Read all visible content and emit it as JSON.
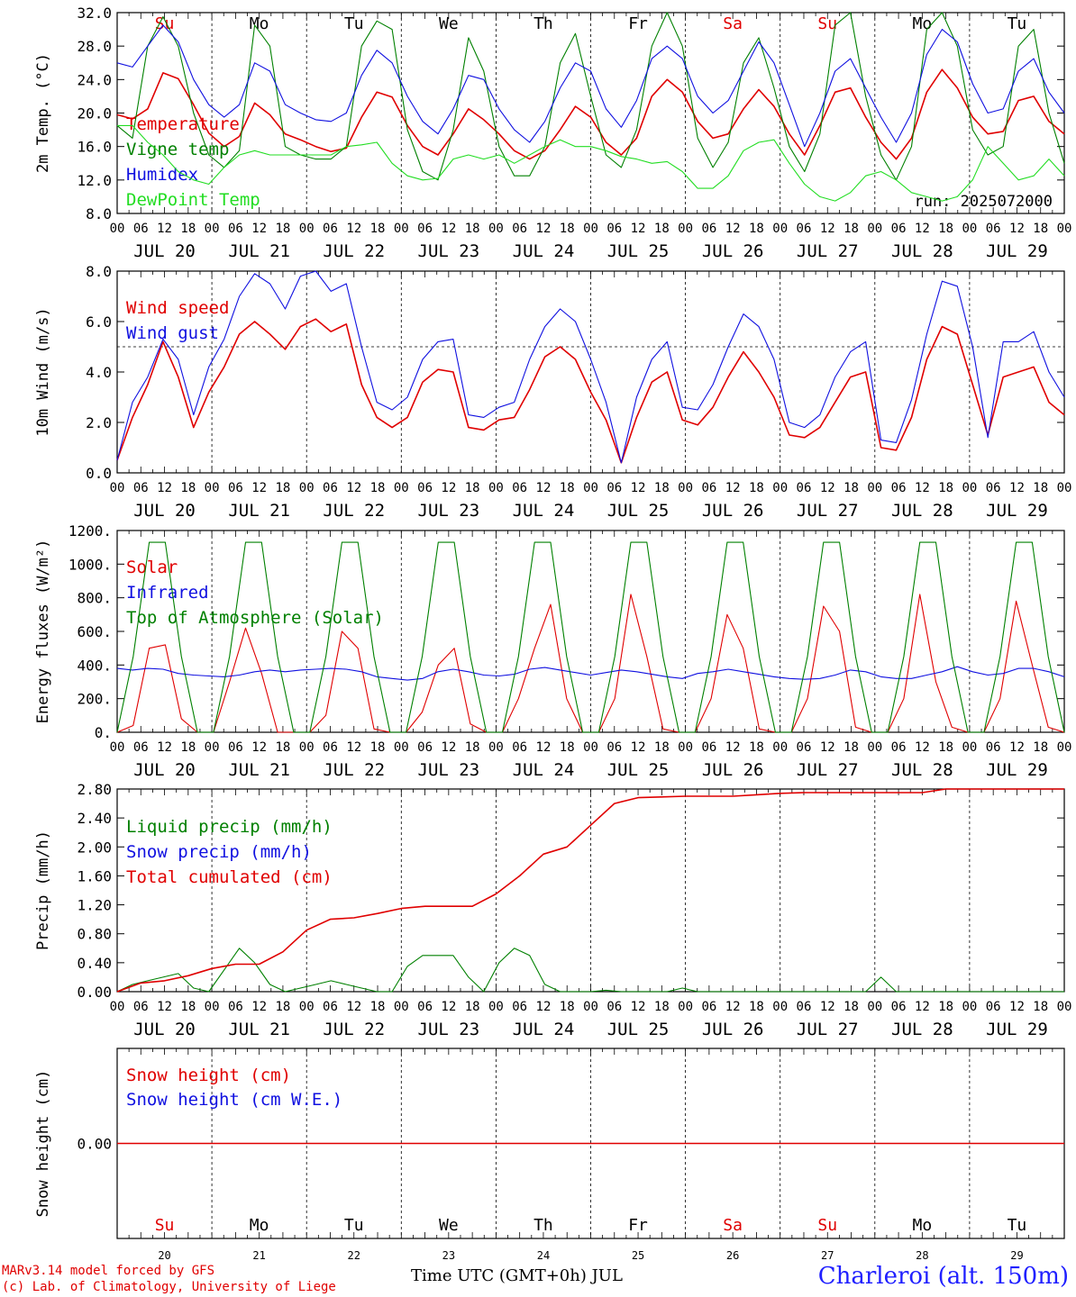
{
  "footer": {
    "credit_line1": "MARv3.14 model forced by GFS",
    "credit_line2": "(c) Lab. of Climatology, University of Liege",
    "station": "Charleroi (alt. 150m)",
    "x_title": "Time UTC (GMT+0h) JUL"
  },
  "colors": {
    "red": "#e00000",
    "green": "#008000",
    "blue": "#1010e0",
    "lightgreen": "#22dd22"
  },
  "chart_data": [
    {
      "id": "temperature",
      "type": "line",
      "ylabel": "2m Temp. (°C)",
      "ylim": [
        8,
        32
      ],
      "yticks": [
        "8.0",
        "12.0",
        "16.0",
        "20.0",
        "24.0",
        "28.0",
        "32.0"
      ],
      "run_label": "run: 2025072000",
      "xlabel_days": [
        "JUL 20",
        "JUL 21",
        "JUL 22",
        "JUL 23",
        "JUL 24",
        "JUL 25",
        "JUL 26",
        "JUL 27",
        "JUL 28",
        "JUL 29"
      ],
      "weekday_labels": [
        "Su",
        "Mo",
        "Tu",
        "We",
        "Th",
        "Fr",
        "Sa",
        "Su",
        "Mo",
        "Tu"
      ],
      "hour_ticks": [
        "00",
        "06",
        "12",
        "18"
      ],
      "x_hours_step": 6,
      "series": [
        {
          "name": "Temperature",
          "color": "red",
          "values": [
            19.8,
            19.3,
            20.5,
            24.8,
            24.1,
            21.0,
            17.6,
            16.0,
            17.2,
            21.2,
            19.8,
            17.5,
            16.8,
            16.0,
            15.4,
            15.8,
            19.5,
            22.5,
            21.9,
            18.5,
            16.0,
            15.0,
            17.5,
            20.5,
            19.2,
            17.5,
            15.5,
            14.5,
            15.5,
            18.0,
            20.8,
            19.5,
            16.5,
            15.0,
            17.0,
            22.0,
            24.0,
            22.5,
            19.0,
            17.0,
            17.5,
            20.5,
            22.8,
            20.8,
            17.5,
            15.0,
            18.5,
            22.5,
            23.0,
            19.5,
            16.5,
            14.5,
            17.0,
            22.5,
            25.2,
            23.0,
            19.5,
            17.5,
            17.8,
            21.5,
            22.0,
            19.0,
            17.5
          ]
        },
        {
          "name": "Vigne temp",
          "color": "green",
          "values": [
            18.5,
            17.0,
            28.0,
            31.5,
            28.0,
            20.0,
            15.0,
            13.5,
            15.5,
            30.5,
            28.0,
            16.0,
            15.0,
            14.5,
            14.5,
            16.0,
            28.0,
            31.0,
            30.0,
            18.0,
            13.0,
            12.0,
            18.0,
            29.0,
            25.0,
            16.0,
            12.5,
            12.5,
            16.0,
            26.0,
            29.5,
            22.0,
            15.0,
            13.5,
            18.0,
            28.0,
            32.0,
            28.0,
            17.0,
            13.5,
            16.5,
            26.0,
            29.0,
            23.0,
            16.0,
            13.0,
            17.5,
            30.5,
            32.0,
            22.0,
            15.0,
            12.0,
            16.0,
            30.0,
            32.0,
            28.0,
            18.0,
            15.0,
            16.0,
            28.0,
            30.0,
            20.0,
            14.0
          ]
        },
        {
          "name": "Humidex",
          "color": "blue",
          "values": [
            26.0,
            25.5,
            28.0,
            30.5,
            28.5,
            24.0,
            21.0,
            19.5,
            21.0,
            26.0,
            25.0,
            21.0,
            20.0,
            19.2,
            19.0,
            20.0,
            24.5,
            27.5,
            26.0,
            22.0,
            19.0,
            17.5,
            20.5,
            24.5,
            24.0,
            20.5,
            18.0,
            16.5,
            19.0,
            23.0,
            26.0,
            25.0,
            20.5,
            18.3,
            21.5,
            26.5,
            28.0,
            26.5,
            22.0,
            20.0,
            21.5,
            25.0,
            28.5,
            26.0,
            21.0,
            16.0,
            20.0,
            25.0,
            26.5,
            23.0,
            19.5,
            16.5,
            20.0,
            27.0,
            30.0,
            28.5,
            23.5,
            20.0,
            20.5,
            25.0,
            26.5,
            22.5,
            20.0
          ]
        },
        {
          "name": "DewPoint Temp",
          "color": "lightgreen",
          "values": [
            18.5,
            18.5,
            16.5,
            15.0,
            13.0,
            12.0,
            11.5,
            13.5,
            15.0,
            15.5,
            15.0,
            15.0,
            15.0,
            15.0,
            15.0,
            16.0,
            16.2,
            16.5,
            14.0,
            12.5,
            12.0,
            12.2,
            14.5,
            15.0,
            14.5,
            15.0,
            14.0,
            15.0,
            16.0,
            16.8,
            16.0,
            16.0,
            15.5,
            14.8,
            14.5,
            14.0,
            14.2,
            13.0,
            11.0,
            11.0,
            12.5,
            15.5,
            16.5,
            16.8,
            14.0,
            11.5,
            10.0,
            9.5,
            10.5,
            12.5,
            13.0,
            12.0,
            10.5,
            10.0,
            9.5,
            10.0,
            12.0,
            16.0,
            14.0,
            12.0,
            12.5,
            14.5,
            12.5
          ]
        }
      ]
    },
    {
      "id": "wind",
      "type": "line",
      "ylabel": "10m Wind (m/s)",
      "ylim": [
        0,
        8
      ],
      "yticks": [
        "0.0",
        "2.0",
        "4.0",
        "6.0",
        "8.0"
      ],
      "reference_line": 5.0,
      "xlabel_days": [
        "JUL 20",
        "JUL 21",
        "JUL 22",
        "JUL 23",
        "JUL 24",
        "JUL 25",
        "JUL 26",
        "JUL 27",
        "JUL 28",
        "JUL 29"
      ],
      "hour_ticks": [
        "00",
        "06",
        "12",
        "18"
      ],
      "x_hours_step": 6,
      "series": [
        {
          "name": "Wind speed",
          "color": "red",
          "values": [
            0.5,
            2.2,
            3.5,
            5.2,
            3.8,
            1.8,
            3.2,
            4.2,
            5.5,
            6.0,
            5.5,
            4.9,
            5.8,
            6.1,
            5.6,
            5.9,
            3.5,
            2.2,
            1.8,
            2.2,
            3.6,
            4.1,
            4.0,
            1.8,
            1.7,
            2.1,
            2.2,
            3.3,
            4.6,
            5.0,
            4.5,
            3.2,
            2.1,
            0.4,
            2.2,
            3.6,
            4.0,
            2.1,
            1.9,
            2.6,
            3.8,
            4.8,
            4.0,
            3.0,
            1.5,
            1.4,
            1.8,
            2.8,
            3.8,
            4.0,
            1.0,
            0.9,
            2.2,
            4.5,
            5.8,
            5.5,
            3.5,
            1.5,
            3.8,
            4.0,
            4.2,
            2.8,
            2.3
          ]
        },
        {
          "name": "Wind gust",
          "color": "blue",
          "values": [
            0.5,
            2.8,
            3.8,
            5.3,
            4.5,
            2.3,
            4.2,
            5.3,
            7.0,
            7.9,
            7.5,
            6.5,
            7.8,
            8.0,
            7.2,
            7.5,
            5.0,
            2.8,
            2.5,
            3.0,
            4.5,
            5.2,
            5.3,
            2.3,
            2.2,
            2.6,
            2.8,
            4.5,
            5.8,
            6.5,
            6.0,
            4.5,
            2.8,
            0.4,
            3.0,
            4.5,
            5.2,
            2.6,
            2.5,
            3.5,
            5.0,
            6.3,
            5.8,
            4.5,
            2.0,
            1.8,
            2.3,
            3.8,
            4.8,
            5.2,
            1.3,
            1.2,
            2.9,
            5.5,
            7.6,
            7.4,
            5.0,
            1.4,
            5.2,
            5.2,
            5.6,
            4.0,
            3.0
          ]
        }
      ]
    },
    {
      "id": "energy",
      "type": "line",
      "ylabel": "Energy fluxes (W/m²)",
      "ylim": [
        0,
        1200
      ],
      "yticks": [
        "0.",
        "200.",
        "400.",
        "600.",
        "800.",
        "1000.",
        "1200."
      ],
      "xlabel_days": [
        "JUL 20",
        "JUL 21",
        "JUL 22",
        "JUL 23",
        "JUL 24",
        "JUL 25",
        "JUL 26",
        "JUL 27",
        "JUL 28",
        "JUL 29"
      ],
      "hour_ticks": [
        "00",
        "06",
        "12",
        "18"
      ],
      "x_hours_step": 6,
      "series": [
        {
          "name": "Solar",
          "color": "red",
          "values": [
            0,
            40,
            500,
            520,
            80,
            0,
            0,
            300,
            620,
            350,
            0,
            0,
            0,
            100,
            600,
            500,
            20,
            0,
            0,
            120,
            400,
            500,
            50,
            0,
            0,
            200,
            500,
            760,
            200,
            0,
            0,
            200,
            820,
            450,
            20,
            0,
            0,
            200,
            700,
            500,
            20,
            0,
            0,
            200,
            750,
            600,
            30,
            0,
            0,
            200,
            820,
            300,
            30,
            0,
            0,
            200,
            780,
            400,
            30,
            0
          ]
        },
        {
          "name": "Infrared",
          "color": "blue",
          "values": [
            380,
            370,
            380,
            375,
            350,
            340,
            335,
            330,
            340,
            360,
            370,
            360,
            370,
            375,
            380,
            375,
            360,
            330,
            320,
            310,
            320,
            360,
            375,
            360,
            340,
            335,
            345,
            375,
            385,
            370,
            355,
            340,
            355,
            370,
            360,
            345,
            330,
            320,
            350,
            360,
            375,
            360,
            345,
            330,
            320,
            315,
            320,
            340,
            370,
            360,
            330,
            320,
            320,
            340,
            360,
            390,
            360,
            340,
            350,
            380,
            380,
            360,
            330
          ]
        },
        {
          "name": "Top of Atmosphere (Solar)",
          "color": "green",
          "values": [
            0,
            450,
            1130,
            1130,
            450,
            0,
            0,
            450,
            1130,
            1130,
            450,
            0,
            0,
            450,
            1130,
            1130,
            450,
            0,
            0,
            450,
            1130,
            1130,
            450,
            0,
            0,
            450,
            1130,
            1130,
            450,
            0,
            0,
            450,
            1130,
            1130,
            450,
            0,
            0,
            450,
            1130,
            1130,
            450,
            0,
            0,
            450,
            1130,
            1130,
            450,
            0,
            0,
            450,
            1130,
            1130,
            450,
            0,
            0,
            450,
            1130,
            1130,
            450,
            0
          ]
        }
      ]
    },
    {
      "id": "precip",
      "type": "line",
      "ylabel": "Precip (mm/h)",
      "ylim": [
        0,
        2.8
      ],
      "yticks": [
        "0.00",
        "0.40",
        "0.80",
        "1.20",
        "1.60",
        "2.00",
        "2.40",
        "2.80"
      ],
      "xlabel_days": [
        "JUL 20",
        "JUL 21",
        "JUL 22",
        "JUL 23",
        "JUL 24",
        "JUL 25",
        "JUL 26",
        "JUL 27",
        "JUL 28",
        "JUL 29"
      ],
      "hour_ticks": [
        "00",
        "06",
        "12",
        "18"
      ],
      "x_hours_step": 6,
      "series": [
        {
          "name": "Liquid precip (mm/h)",
          "color": "green",
          "values": [
            0.0,
            0.1,
            0.15,
            0.2,
            0.25,
            0.05,
            0.0,
            0.3,
            0.6,
            0.4,
            0.1,
            0.0,
            0.05,
            0.1,
            0.15,
            0.1,
            0.05,
            0.0,
            0.0,
            0.35,
            0.5,
            0.5,
            0.5,
            0.2,
            0.0,
            0.4,
            0.6,
            0.5,
            0.1,
            0.0,
            0.0,
            0.0,
            0.02,
            0.0,
            0.0,
            0.0,
            0.0,
            0.05,
            0.0,
            0.0,
            0.0,
            0.0,
            0.0,
            0.0,
            0.0,
            0.0,
            0.0,
            0.0,
            0.0,
            0.0,
            0.2,
            0.0,
            0.0,
            0.0,
            0.0,
            0.0,
            0.0,
            0.0,
            0.0,
            0.0,
            0.0,
            0.0,
            0.0
          ]
        },
        {
          "name": "Snow precip (mm/h)",
          "color": "blue",
          "values": []
        },
        {
          "name": "Total cumulated (cm)",
          "color": "red",
          "values": [
            0.0,
            0.12,
            0.15,
            0.22,
            0.32,
            0.38,
            0.38,
            0.55,
            0.85,
            1.0,
            1.02,
            1.08,
            1.15,
            1.18,
            1.18,
            1.18,
            1.35,
            1.6,
            1.9,
            2.0,
            2.3,
            2.6,
            2.68,
            2.69,
            2.7,
            2.7,
            2.7,
            2.72,
            2.74,
            2.75,
            2.75,
            2.75,
            2.75,
            2.75,
            2.75,
            2.8,
            2.8,
            2.8,
            2.8,
            2.8,
            2.8
          ]
        }
      ]
    },
    {
      "id": "snow",
      "type": "line",
      "ylabel": "Snow height (cm)",
      "ylim": [
        -1,
        1
      ],
      "yticks": [
        "0.00"
      ],
      "day_numbers": [
        "20",
        "21",
        "22",
        "23",
        "24",
        "25",
        "26",
        "27",
        "28",
        "29"
      ],
      "weekday_labels": [
        "Su",
        "Mo",
        "Tu",
        "We",
        "Th",
        "Fr",
        "Sa",
        "Su",
        "Mo",
        "Tu"
      ],
      "series": [
        {
          "name": "Snow height (cm)",
          "color": "red",
          "values": [
            0,
            0
          ]
        },
        {
          "name": "Snow height (cm W.E.)",
          "color": "blue",
          "values": []
        }
      ]
    }
  ]
}
